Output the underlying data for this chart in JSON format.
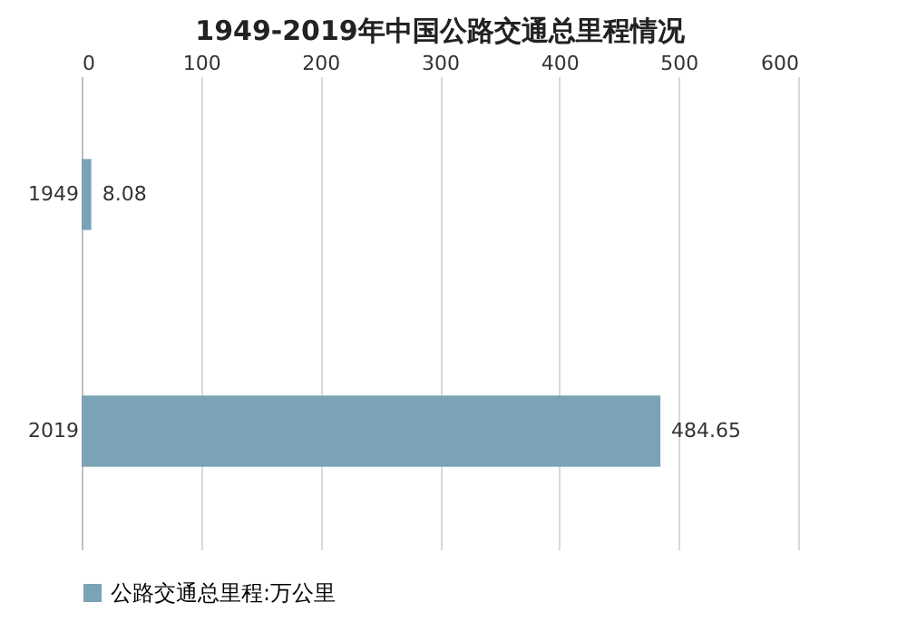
{
  "chart_data": {
    "type": "bar",
    "orientation": "horizontal",
    "title": "1949-2019年中国公路交通总里程情况",
    "categories": [
      "1949",
      "2019"
    ],
    "series": [
      {
        "name": "公路交通总里程:万公里",
        "color": "#7aa3b5",
        "values": [
          8.08,
          484.65
        ]
      }
    ],
    "xlim": [
      0,
      600
    ],
    "xticks": [
      0,
      100,
      200,
      300,
      400,
      500,
      600
    ],
    "grid": "x",
    "legend": "bottom",
    "data_labels": true
  }
}
